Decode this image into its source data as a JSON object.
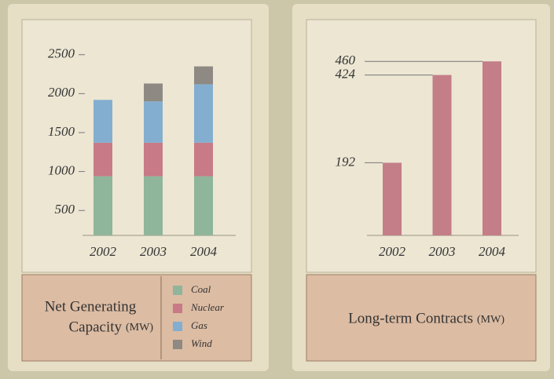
{
  "chart_data": [
    {
      "type": "stacked_bar",
      "title": "Net Generating Capacity",
      "unit": "(MW)",
      "categories": [
        "2002",
        "2003",
        "2004"
      ],
      "series": [
        {
          "name": "Coal",
          "color": "#8fb59a",
          "values": [
            940,
            940,
            940
          ]
        },
        {
          "name": "Nuclear",
          "color": "#c87a86",
          "values": [
            430,
            430,
            430
          ]
        },
        {
          "name": "Gas",
          "color": "#84aed0",
          "values": [
            550,
            530,
            750
          ]
        },
        {
          "name": "Wind",
          "color": "#8e8a83",
          "values": [
            null,
            230,
            230
          ]
        }
      ],
      "ylim": [
        180,
        2900
      ],
      "yticks": [
        500,
        1000,
        1500,
        2000,
        2500
      ]
    },
    {
      "type": "bar",
      "title": "Long-term Contracts",
      "unit": "(MW)",
      "categories": [
        "2002",
        "2003",
        "2004"
      ],
      "values": [
        192,
        424,
        460
      ],
      "color": "#c47e88",
      "ylim": [
        0,
        560
      ],
      "yticks": [
        192,
        424,
        460
      ]
    }
  ]
}
